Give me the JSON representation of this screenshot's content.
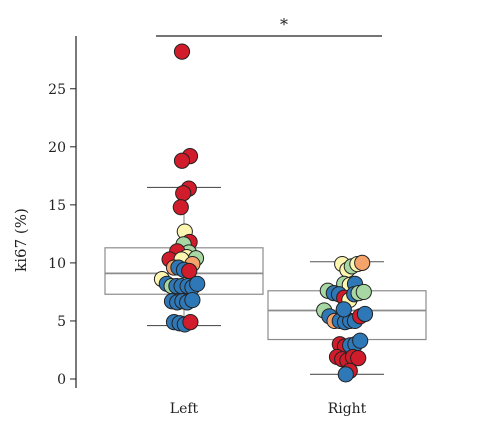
{
  "chart_data": {
    "type": "scatter",
    "subtype": "box-with-jittered-points",
    "title": "",
    "xlabel": "",
    "ylabel": "ki67 (%)",
    "ylim": [
      0,
      30
    ],
    "yticks": [
      0,
      5,
      10,
      15,
      20,
      25
    ],
    "categories": [
      "Left",
      "Right"
    ],
    "significance": {
      "between": [
        "Left",
        "Right"
      ],
      "label": "*"
    },
    "colors": {
      "red": "#d01c2b",
      "blue": "#2f78b7",
      "green": "#a7d7a2",
      "orange": "#f4a46b",
      "yellow": "#fdf6b0"
    },
    "boxes": [
      {
        "category": "Left",
        "q1": 7.3,
        "median": 9.1,
        "q3": 11.3,
        "whisker_low": 4.6,
        "whisker_high": 16.5
      },
      {
        "category": "Right",
        "q1": 3.4,
        "median": 5.9,
        "q3": 7.6,
        "whisker_low": 0.4,
        "whisker_high": 10.1
      }
    ],
    "points": [
      {
        "category": "Left",
        "offset": -0.05,
        "y": 28.2,
        "color": "red"
      },
      {
        "category": "Left",
        "offset": 0.15,
        "y": 19.2,
        "color": "red"
      },
      {
        "category": "Left",
        "offset": -0.05,
        "y": 18.8,
        "color": "red"
      },
      {
        "category": "Left",
        "offset": 0.12,
        "y": 16.4,
        "color": "red"
      },
      {
        "category": "Left",
        "offset": -0.02,
        "y": 16.0,
        "color": "red"
      },
      {
        "category": "Left",
        "offset": -0.08,
        "y": 14.8,
        "color": "red"
      },
      {
        "category": "Left",
        "offset": 0.02,
        "y": 12.7,
        "color": "yellow"
      },
      {
        "category": "Left",
        "offset": 0.14,
        "y": 11.8,
        "color": "red"
      },
      {
        "category": "Left",
        "offset": -0.01,
        "y": 11.6,
        "color": "green"
      },
      {
        "category": "Left",
        "offset": 0.12,
        "y": 10.9,
        "color": "green"
      },
      {
        "category": "Left",
        "offset": -0.17,
        "y": 11.0,
        "color": "red"
      },
      {
        "category": "Left",
        "offset": 0.07,
        "y": 10.5,
        "color": "yellow"
      },
      {
        "category": "Left",
        "offset": 0.3,
        "y": 10.4,
        "color": "green"
      },
      {
        "category": "Left",
        "offset": -0.36,
        "y": 10.3,
        "color": "red"
      },
      {
        "category": "Left",
        "offset": -0.06,
        "y": 10.3,
        "color": "yellow"
      },
      {
        "category": "Left",
        "offset": 0.21,
        "y": 9.9,
        "color": "orange"
      },
      {
        "category": "Left",
        "offset": -0.25,
        "y": 9.6,
        "color": "orange"
      },
      {
        "category": "Left",
        "offset": -0.14,
        "y": 9.6,
        "color": "blue"
      },
      {
        "category": "Left",
        "offset": 0.0,
        "y": 9.4,
        "color": "blue"
      },
      {
        "category": "Left",
        "offset": 0.13,
        "y": 9.3,
        "color": "red"
      },
      {
        "category": "Left",
        "offset": -0.55,
        "y": 8.6,
        "color": "yellow"
      },
      {
        "category": "Left",
        "offset": -0.43,
        "y": 8.2,
        "color": "blue"
      },
      {
        "category": "Left",
        "offset": -0.31,
        "y": 8.0,
        "color": "green"
      },
      {
        "category": "Left",
        "offset": -0.19,
        "y": 8.0,
        "color": "blue"
      },
      {
        "category": "Left",
        "offset": -0.06,
        "y": 8.0,
        "color": "blue"
      },
      {
        "category": "Left",
        "offset": 0.09,
        "y": 8.0,
        "color": "blue"
      },
      {
        "category": "Left",
        "offset": 0.21,
        "y": 7.9,
        "color": "blue"
      },
      {
        "category": "Left",
        "offset": 0.33,
        "y": 8.2,
        "color": "blue"
      },
      {
        "category": "Left",
        "offset": -0.3,
        "y": 6.7,
        "color": "blue"
      },
      {
        "category": "Left",
        "offset": -0.17,
        "y": 6.6,
        "color": "blue"
      },
      {
        "category": "Left",
        "offset": -0.04,
        "y": 6.7,
        "color": "blue"
      },
      {
        "category": "Left",
        "offset": 0.08,
        "y": 6.6,
        "color": "blue"
      },
      {
        "category": "Left",
        "offset": 0.21,
        "y": 6.8,
        "color": "blue"
      },
      {
        "category": "Left",
        "offset": -0.25,
        "y": 4.9,
        "color": "blue"
      },
      {
        "category": "Left",
        "offset": -0.11,
        "y": 4.8,
        "color": "blue"
      },
      {
        "category": "Left",
        "offset": 0.02,
        "y": 4.7,
        "color": "blue"
      },
      {
        "category": "Left",
        "offset": 0.16,
        "y": 4.9,
        "color": "red"
      },
      {
        "category": "Right",
        "offset": -0.12,
        "y": 9.9,
        "color": "yellow"
      },
      {
        "category": "Right",
        "offset": 0.01,
        "y": 9.4,
        "color": "yellow"
      },
      {
        "category": "Right",
        "offset": 0.12,
        "y": 9.7,
        "color": "green"
      },
      {
        "category": "Right",
        "offset": 0.26,
        "y": 9.9,
        "color": "yellow"
      },
      {
        "category": "Right",
        "offset": 0.38,
        "y": 10.0,
        "color": "orange"
      },
      {
        "category": "Right",
        "offset": -0.07,
        "y": 8.2,
        "color": "green"
      },
      {
        "category": "Right",
        "offset": 0.07,
        "y": 8.1,
        "color": "yellow"
      },
      {
        "category": "Right",
        "offset": 0.2,
        "y": 8.2,
        "color": "blue"
      },
      {
        "category": "Right",
        "offset": -0.48,
        "y": 7.6,
        "color": "green"
      },
      {
        "category": "Right",
        "offset": -0.33,
        "y": 7.4,
        "color": "blue"
      },
      {
        "category": "Right",
        "offset": -0.2,
        "y": 7.3,
        "color": "blue"
      },
      {
        "category": "Right",
        "offset": -0.07,
        "y": 7.0,
        "color": "red"
      },
      {
        "category": "Right",
        "offset": 0.06,
        "y": 6.8,
        "color": "yellow"
      },
      {
        "category": "Right",
        "offset": 0.18,
        "y": 7.3,
        "color": "blue"
      },
      {
        "category": "Right",
        "offset": 0.29,
        "y": 7.4,
        "color": "green"
      },
      {
        "category": "Right",
        "offset": 0.42,
        "y": 7.5,
        "color": "green"
      },
      {
        "category": "Right",
        "offset": -0.57,
        "y": 5.9,
        "color": "green"
      },
      {
        "category": "Right",
        "offset": -0.44,
        "y": 5.4,
        "color": "blue"
      },
      {
        "category": "Right",
        "offset": -0.31,
        "y": 5.0,
        "color": "orange"
      },
      {
        "category": "Right",
        "offset": -0.18,
        "y": 5.0,
        "color": "blue"
      },
      {
        "category": "Right",
        "offset": -0.05,
        "y": 4.9,
        "color": "blue"
      },
      {
        "category": "Right",
        "offset": 0.08,
        "y": 5.0,
        "color": "blue"
      },
      {
        "category": "Right",
        "offset": 0.2,
        "y": 5.0,
        "color": "blue"
      },
      {
        "category": "Right",
        "offset": 0.33,
        "y": 5.4,
        "color": "red"
      },
      {
        "category": "Right",
        "offset": 0.45,
        "y": 5.6,
        "color": "blue"
      },
      {
        "category": "Right",
        "offset": -0.08,
        "y": 6.0,
        "color": "blue"
      },
      {
        "category": "Right",
        "offset": -0.18,
        "y": 3.0,
        "color": "red"
      },
      {
        "category": "Right",
        "offset": -0.05,
        "y": 2.8,
        "color": "red"
      },
      {
        "category": "Right",
        "offset": 0.08,
        "y": 2.9,
        "color": "blue"
      },
      {
        "category": "Right",
        "offset": 0.21,
        "y": 3.0,
        "color": "blue"
      },
      {
        "category": "Right",
        "offset": 0.33,
        "y": 3.3,
        "color": "blue"
      },
      {
        "category": "Right",
        "offset": -0.25,
        "y": 1.9,
        "color": "red"
      },
      {
        "category": "Right",
        "offset": -0.12,
        "y": 1.7,
        "color": "red"
      },
      {
        "category": "Right",
        "offset": 0.01,
        "y": 1.6,
        "color": "red"
      },
      {
        "category": "Right",
        "offset": 0.15,
        "y": 1.9,
        "color": "red"
      },
      {
        "category": "Right",
        "offset": 0.28,
        "y": 1.8,
        "color": "red"
      },
      {
        "category": "Right",
        "offset": 0.07,
        "y": 0.7,
        "color": "red"
      },
      {
        "category": "Right",
        "offset": -0.03,
        "y": 0.4,
        "color": "blue"
      }
    ]
  }
}
